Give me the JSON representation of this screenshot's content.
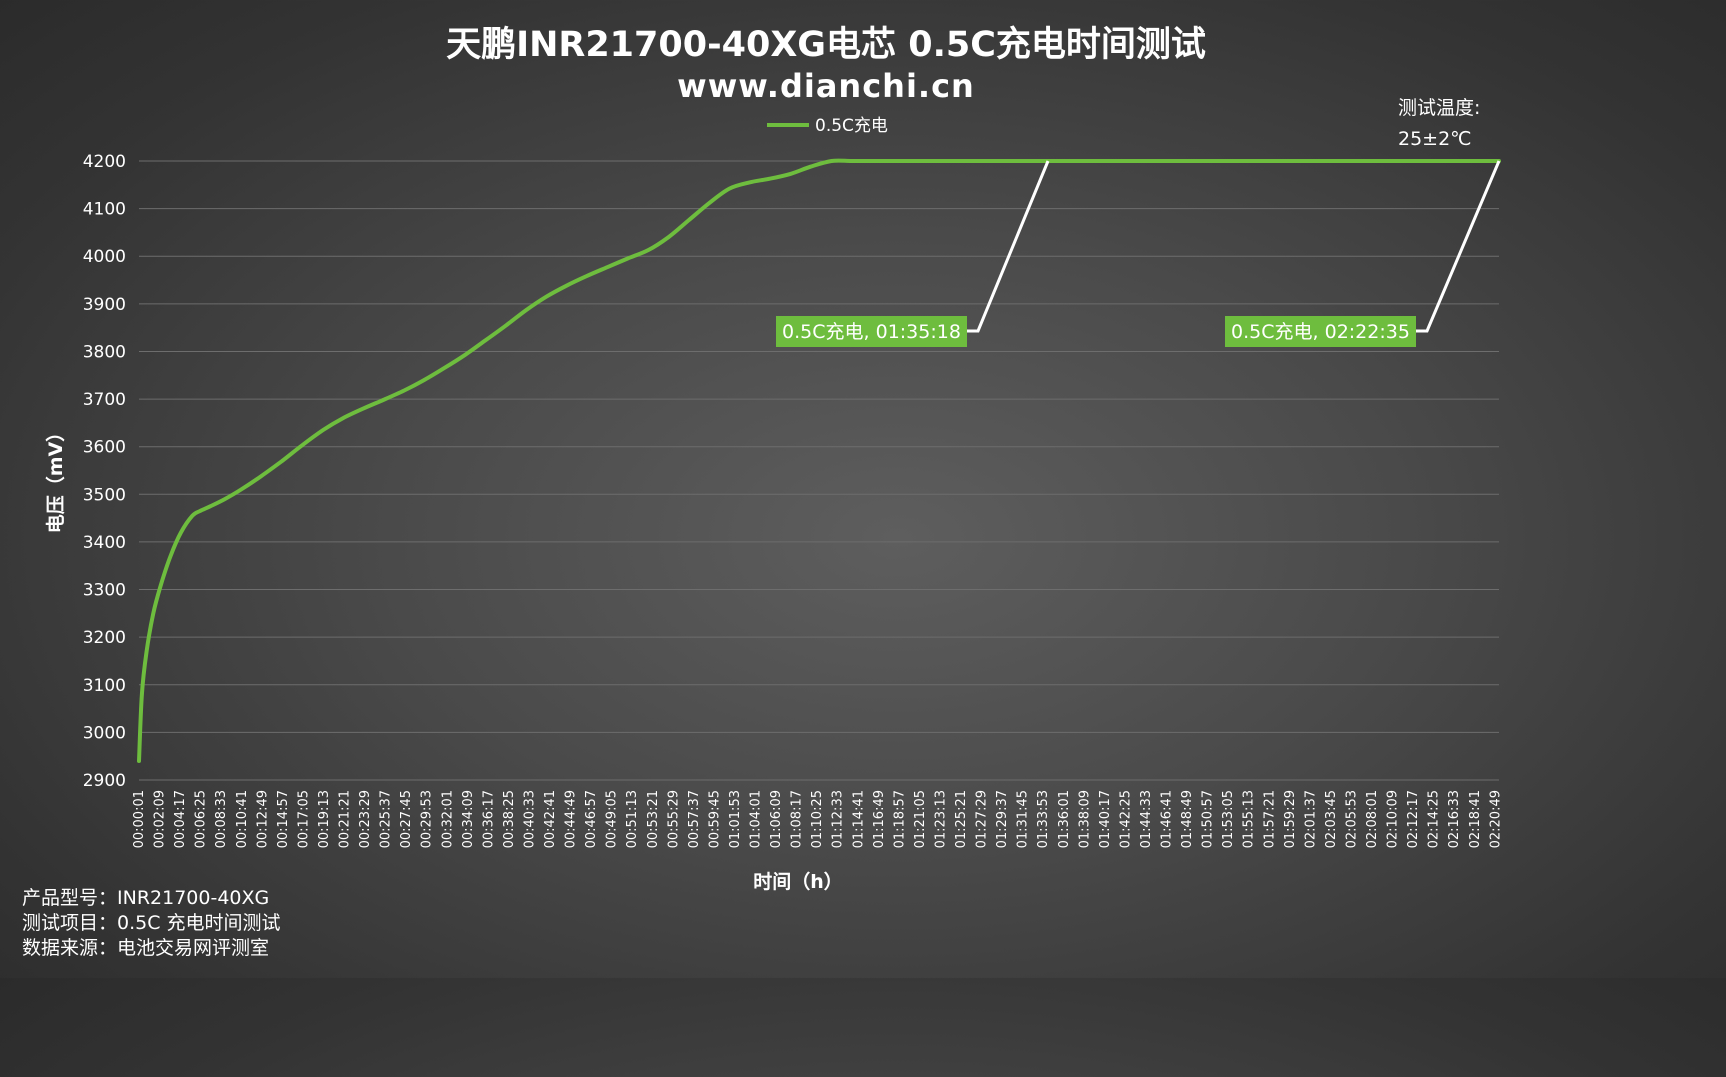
{
  "chart_data": {
    "type": "line",
    "title": "天鹏INR21700-40XG电芯 0.5C充电时间测试",
    "subtitle": "www.dianchi.cn",
    "xlabel": "时间（h）",
    "ylabel": "电压（mV）",
    "ylim": [
      2900,
      4200
    ],
    "yticks": [
      "4200",
      "4100",
      "4000",
      "3900",
      "3800",
      "3700",
      "3600",
      "3500",
      "3400",
      "3300",
      "3200",
      "3100",
      "3000",
      "2900"
    ],
    "grid": true,
    "legend_position": "top-center",
    "x_tick_labels": [
      "00:00:01",
      "00:02:09",
      "00:04:17",
      "00:06:25",
      "00:08:33",
      "00:10:41",
      "00:12:49",
      "00:14:57",
      "00:17:05",
      "00:19:13",
      "00:21:21",
      "00:23:29",
      "00:25:37",
      "00:27:45",
      "00:29:53",
      "00:32:01",
      "00:34:09",
      "00:36:17",
      "00:38:25",
      "00:40:33",
      "00:42:41",
      "00:44:49",
      "00:46:57",
      "00:49:05",
      "00:51:13",
      "00:53:21",
      "00:55:29",
      "00:57:37",
      "00:59:45",
      "01:01:53",
      "01:04:01",
      "01:06:09",
      "01:08:17",
      "01:10:25",
      "01:12:33",
      "01:14:41",
      "01:16:49",
      "01:18:57",
      "01:21:05",
      "01:23:13",
      "01:25:21",
      "01:27:29",
      "01:29:37",
      "01:31:45",
      "01:33:53",
      "01:36:01",
      "01:38:09",
      "01:40:17",
      "01:42:25",
      "01:44:33",
      "01:46:41",
      "01:48:49",
      "01:50:57",
      "01:53:05",
      "01:55:13",
      "01:57:21",
      "01:59:29",
      "02:01:37",
      "02:03:45",
      "02:05:53",
      "02:08:01",
      "02:10:09",
      "02:12:17",
      "02:14:25",
      "02:16:33",
      "02:18:41",
      "02:20:49"
    ],
    "x_minutes_total": 142.58,
    "series": [
      {
        "name": "0.5C充电",
        "color": "#6ebd3e",
        "x_minutes": [
          0,
          0.3,
          0.8,
          1.5,
          2.3,
          3.3,
          4.4,
          5.6,
          6.4,
          7.5,
          9.0,
          10.7,
          12.8,
          15.0,
          17.1,
          19.3,
          21.4,
          23.5,
          25.6,
          27.8,
          29.9,
          32.0,
          34.2,
          36.3,
          38.5,
          40.6,
          42.7,
          44.8,
          46.9,
          49.1,
          51.2,
          53.4,
          55.5,
          57.6,
          59.8,
          61.9,
          64.0,
          66.2,
          68.3,
          70.4,
          72.6,
          74.7,
          76.9,
          79.0,
          81.1,
          83.2,
          85.4,
          87.5,
          89.6,
          91.7,
          93.9,
          95.3,
          96.0,
          142.58
        ],
        "y_mv": [
          2940,
          3080,
          3170,
          3250,
          3310,
          3370,
          3420,
          3455,
          3465,
          3475,
          3490,
          3510,
          3538,
          3570,
          3603,
          3635,
          3660,
          3680,
          3698,
          3718,
          3740,
          3765,
          3793,
          3823,
          3855,
          3887,
          3915,
          3938,
          3958,
          3977,
          3995,
          4013,
          4040,
          4075,
          4112,
          4142,
          4155,
          4163,
          4173,
          4188,
          4200,
          4200,
          4200,
          4200,
          4200,
          4200,
          4200,
          4200,
          4200,
          4200,
          4200,
          4200,
          4200,
          4200
        ]
      }
    ],
    "annotations": [
      {
        "text": "0.5C充电, 01:35:18",
        "x_minutes": 95.3,
        "y_mv": 4200
      },
      {
        "text": "0.5C充电, 02:22:35",
        "x_minutes": 142.58,
        "y_mv": 4200
      }
    ],
    "test_temperature_label": "测试温度:",
    "test_temperature_value": "25±2℃"
  },
  "colors": {
    "series_line": "#6ebd3e",
    "label_bg": "#6ebd3e",
    "gridline": "#6d6d6d",
    "leader_line": "#ffffff"
  },
  "footer": {
    "model": "产品型号：INR21700-40XG",
    "test_item": "测试项目：0.5C 充电时间测试",
    "source": "数据来源：电池交易网评测室"
  }
}
